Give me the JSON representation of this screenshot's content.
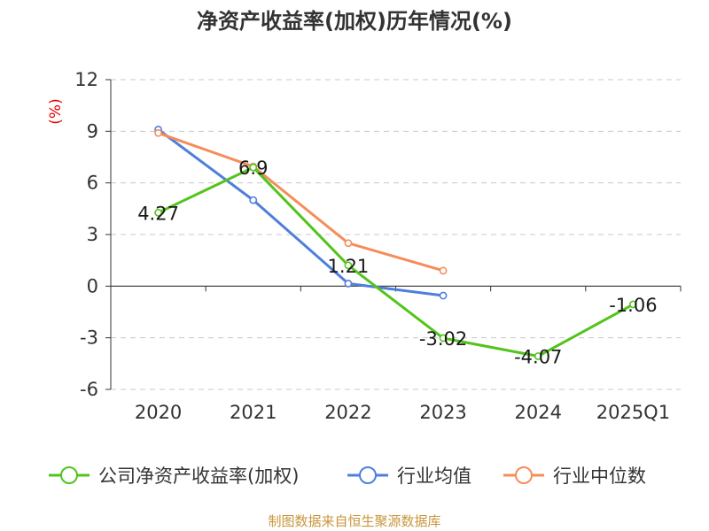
{
  "chart_data": {
    "type": "line",
    "title": "净资产收益率(加权)历年情况(%)",
    "ylabel": "(%)",
    "xlabel": "",
    "categories": [
      "2020",
      "2021",
      "2022",
      "2023",
      "2024",
      "2025Q1"
    ],
    "yticks": [
      12,
      9,
      6,
      3,
      0,
      -3,
      -6
    ],
    "ylim": [
      -6,
      12
    ],
    "grid": true,
    "legend_position": "bottom",
    "series": [
      {
        "name": "公司净资产收益率(加权)",
        "color": "#52c41a",
        "values": [
          4.27,
          6.9,
          1.21,
          -3.02,
          -4.07,
          -1.06
        ],
        "labels": [
          "4.27",
          "6.9",
          "1.21",
          "-3.02",
          "-4.07",
          "-1.06"
        ]
      },
      {
        "name": "行业均值",
        "color": "#4f7fdb",
        "values": [
          9.1,
          5.0,
          0.15,
          -0.55,
          null,
          null
        ]
      },
      {
        "name": "行业中位数",
        "color": "#f58d5a",
        "values": [
          8.9,
          6.95,
          2.5,
          0.9,
          null,
          null
        ]
      }
    ]
  },
  "source": "制图数据来自恒生聚源数据库"
}
